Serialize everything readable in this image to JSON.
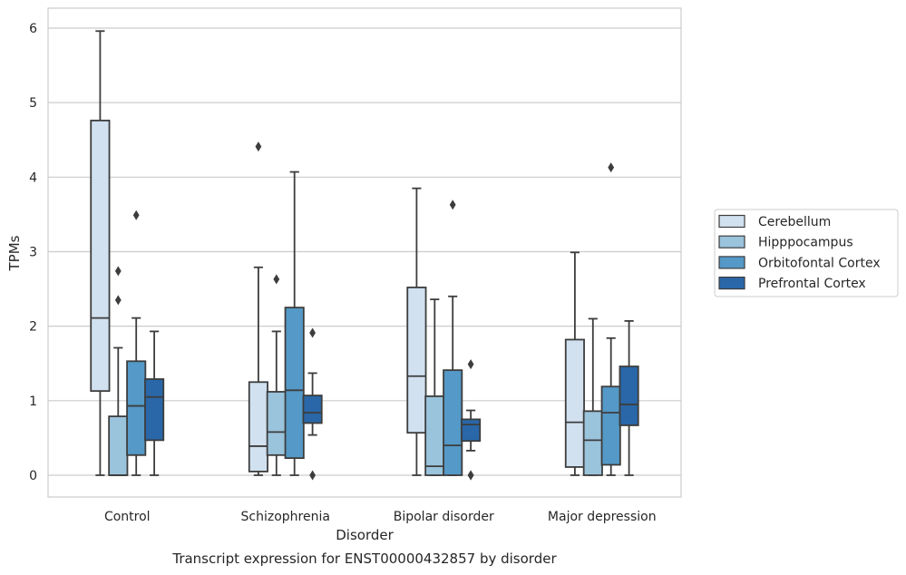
{
  "caption": "Transcript expression for ENST00000432857 by disorder",
  "chart_data": {
    "type": "box",
    "xlabel": "Disorder",
    "ylabel": "TPMs",
    "ylim": [
      -0.3,
      6.27
    ],
    "yticks": [
      0,
      1,
      2,
      3,
      4,
      5,
      6
    ],
    "grid": "horizontal",
    "legend_position": "right",
    "categories": [
      "Control",
      "Schizophrenia",
      "Bipolar disorder",
      "Major depression"
    ],
    "series": [
      {
        "name": "Cerebellum",
        "color": "#d1e1f0",
        "boxes": [
          {
            "whislo": 0.0,
            "q1": 1.13,
            "med": 2.11,
            "q3": 4.76,
            "whishi": 5.96,
            "fliers": []
          },
          {
            "whislo": 0.0,
            "q1": 0.05,
            "med": 0.39,
            "q3": 1.25,
            "whislo_note": "",
            "whishi": 2.79,
            "fliers": [
              4.41
            ]
          },
          {
            "whislo": 0.0,
            "q1": 0.57,
            "med": 1.33,
            "q3": 2.52,
            "whishi": 3.85,
            "fliers": []
          },
          {
            "whislo": 0.0,
            "q1": 0.11,
            "med": 0.71,
            "q3": 1.82,
            "whishi": 2.99,
            "fliers": []
          }
        ]
      },
      {
        "name": "Hipppocampus",
        "color": "#9ac3dc",
        "boxes": [
          {
            "whislo": 0.0,
            "q1": 0.0,
            "med": 0.0,
            "q3": 0.79,
            "whishi": 1.71,
            "fliers": [
              2.35,
              2.74
            ]
          },
          {
            "whislo": 0.0,
            "q1": 0.27,
            "med": 0.58,
            "q3": 1.12,
            "whishi": 1.93,
            "fliers": [
              2.63
            ]
          },
          {
            "whislo": 0.0,
            "q1": 0.0,
            "med": 0.12,
            "q3": 1.06,
            "whishi": 2.36,
            "fliers": []
          },
          {
            "whislo": 0.0,
            "q1": 0.0,
            "med": 0.47,
            "q3": 0.86,
            "whishi": 2.1,
            "fliers": []
          }
        ]
      },
      {
        "name": "Orbitofontal Cortex",
        "color": "#5499c7",
        "boxes": [
          {
            "whislo": 0.0,
            "q1": 0.27,
            "med": 0.93,
            "q3": 1.53,
            "whishi": 2.11,
            "fliers": [
              3.49
            ]
          },
          {
            "whislo": 0.0,
            "q1": 0.23,
            "med": 1.14,
            "q3": 2.25,
            "whishi": 4.07,
            "fliers": []
          },
          {
            "whislo": 0.0,
            "q1": 0.0,
            "med": 0.4,
            "q3": 1.41,
            "whishi": 2.4,
            "fliers": [
              3.63
            ]
          },
          {
            "whislo": 0.0,
            "q1": 0.14,
            "med": 0.84,
            "q3": 1.19,
            "whishi": 1.84,
            "fliers": [
              4.13
            ]
          }
        ]
      },
      {
        "name": "Prefrontal Cortex",
        "color": "#2967a8",
        "boxes": [
          {
            "whislo": 0.0,
            "q1": 0.47,
            "med": 1.05,
            "q3": 1.29,
            "whishi": 1.93,
            "fliers": []
          },
          {
            "whislo": 0.54,
            "q1": 0.7,
            "med": 0.84,
            "q3": 1.07,
            "whishi": 1.37,
            "fliers": [
              1.91,
              0.0
            ]
          },
          {
            "whislo": 0.33,
            "q1": 0.46,
            "med": 0.68,
            "q3": 0.75,
            "whishi": 0.87,
            "fliers": [
              1.49,
              0.0,
              0.0
            ]
          },
          {
            "whislo": 0.0,
            "q1": 0.67,
            "med": 0.95,
            "q3": 1.46,
            "whishi": 2.07,
            "fliers": []
          }
        ]
      }
    ]
  },
  "colors": {
    "background": "#ffffff",
    "grid": "#cccccc",
    "frame": "#cccccc",
    "box_edge": "#3d3d3d",
    "text": "#262626"
  }
}
